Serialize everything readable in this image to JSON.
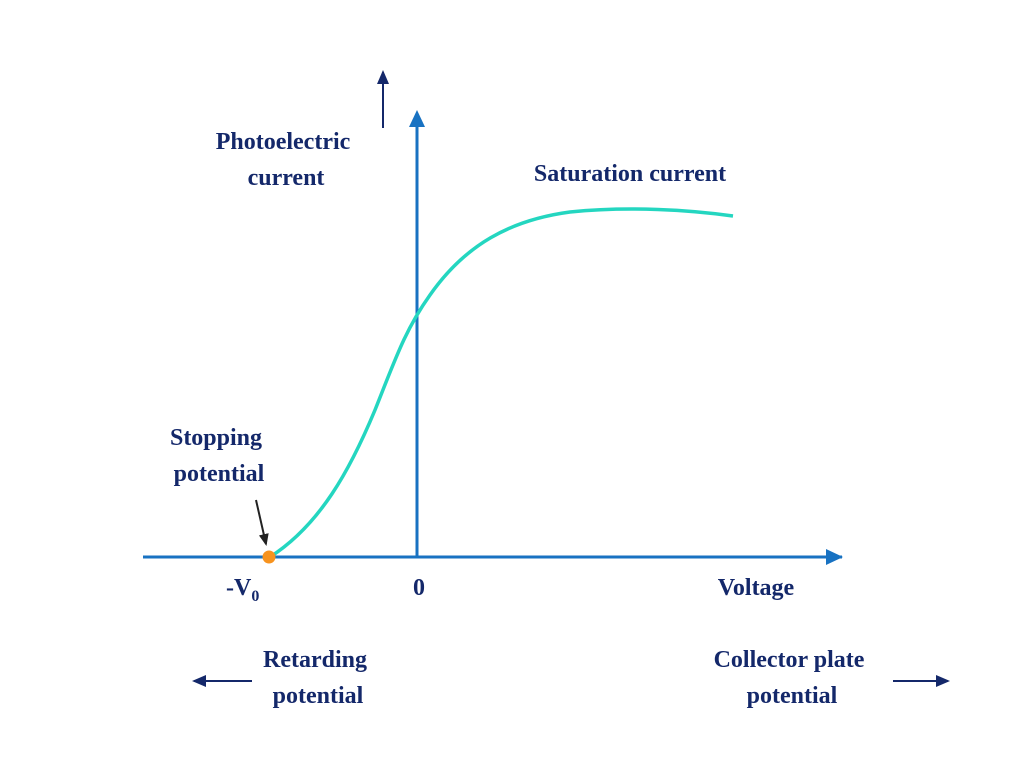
{
  "labels": {
    "y_axis": [
      "Photoelectric",
      "current"
    ],
    "saturation": "Saturation current",
    "stopping": [
      "Stopping",
      "potential"
    ],
    "stopping_point": {
      "main": "-V",
      "subscript": "0"
    },
    "origin": "0",
    "x_axis": "Voltage",
    "retarding": [
      "Retarding",
      "potential"
    ],
    "collector": [
      "Collector plate",
      "potential"
    ]
  }
}
